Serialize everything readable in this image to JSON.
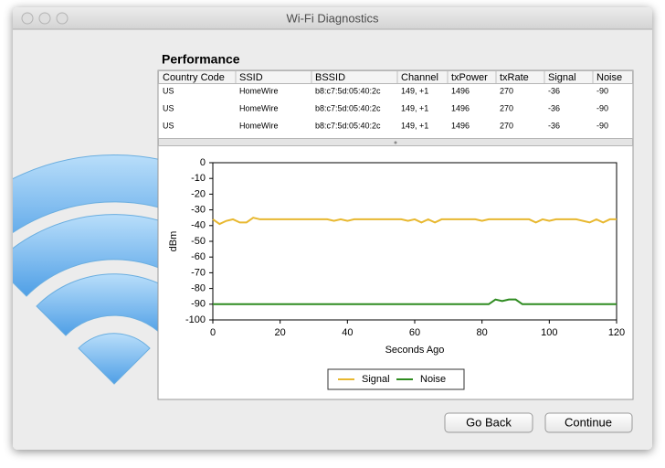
{
  "window": {
    "title": "Wi-Fi Diagnostics"
  },
  "section_title": "Performance",
  "table": {
    "columns": [
      "Country Code",
      "SSID",
      "BSSID",
      "Channel",
      "txPower",
      "txRate",
      "Signal",
      "Noise"
    ],
    "rows": [
      [
        "US",
        "HomeWire",
        "b8:c7:5d:05:40:2c",
        "149, +1",
        "1496",
        "270",
        "-36",
        "-90"
      ],
      [
        "US",
        "HomeWire",
        "b8:c7:5d:05:40:2c",
        "149, +1",
        "1496",
        "270",
        "-36",
        "-90"
      ],
      [
        "US",
        "HomeWire",
        "b8:c7:5d:05:40:2c",
        "149, +1",
        "1496",
        "270",
        "-36",
        "-90"
      ]
    ]
  },
  "chart_data": {
    "type": "line",
    "xlabel": "Seconds Ago",
    "ylabel": "dBm",
    "x": [
      0,
      2,
      4,
      6,
      8,
      10,
      12,
      14,
      16,
      18,
      20,
      22,
      24,
      26,
      28,
      30,
      32,
      34,
      36,
      38,
      40,
      42,
      44,
      46,
      48,
      50,
      52,
      54,
      56,
      58,
      60,
      62,
      64,
      66,
      68,
      70,
      72,
      74,
      76,
      78,
      80,
      82,
      84,
      86,
      88,
      90,
      92,
      94,
      96,
      98,
      100,
      102,
      104,
      106,
      108,
      110,
      112,
      114,
      116,
      118,
      120
    ],
    "series": [
      {
        "name": "Signal",
        "color": "#e8b830",
        "values": [
          -36,
          -39,
          -37,
          -36,
          -38,
          -38,
          -35,
          -36,
          -36,
          -36,
          -36,
          -36,
          -36,
          -36,
          -36,
          -36,
          -36,
          -36,
          -37,
          -36,
          -37,
          -36,
          -36,
          -36,
          -36,
          -36,
          -36,
          -36,
          -36,
          -37,
          -36,
          -38,
          -36,
          -38,
          -36,
          -36,
          -36,
          -36,
          -36,
          -36,
          -37,
          -36,
          -36,
          -36,
          -36,
          -36,
          -36,
          -36,
          -38,
          -36,
          -37,
          -36,
          -36,
          -36,
          -36,
          -37,
          -38,
          -36,
          -38,
          -36,
          -36
        ]
      },
      {
        "name": "Noise",
        "color": "#2e8b20",
        "values": [
          -90,
          -90,
          -90,
          -90,
          -90,
          -90,
          -90,
          -90,
          -90,
          -90,
          -90,
          -90,
          -90,
          -90,
          -90,
          -90,
          -90,
          -90,
          -90,
          -90,
          -90,
          -90,
          -90,
          -90,
          -90,
          -90,
          -90,
          -90,
          -90,
          -90,
          -90,
          -90,
          -90,
          -90,
          -90,
          -90,
          -90,
          -90,
          -90,
          -90,
          -90,
          -90,
          -87,
          -88,
          -87,
          -87,
          -90,
          -90,
          -90,
          -90,
          -90,
          -90,
          -90,
          -90,
          -90,
          -90,
          -90,
          -90,
          -90,
          -90,
          -90
        ]
      }
    ],
    "xlim": [
      0,
      120
    ],
    "xticks": [
      0,
      20,
      40,
      60,
      80,
      100,
      120
    ],
    "ylim": [
      -100,
      0
    ],
    "yticks": [
      0,
      -10,
      -20,
      -30,
      -40,
      -50,
      -60,
      -70,
      -80,
      -90,
      -100
    ]
  },
  "buttons": [
    "Go Back",
    "Continue"
  ]
}
